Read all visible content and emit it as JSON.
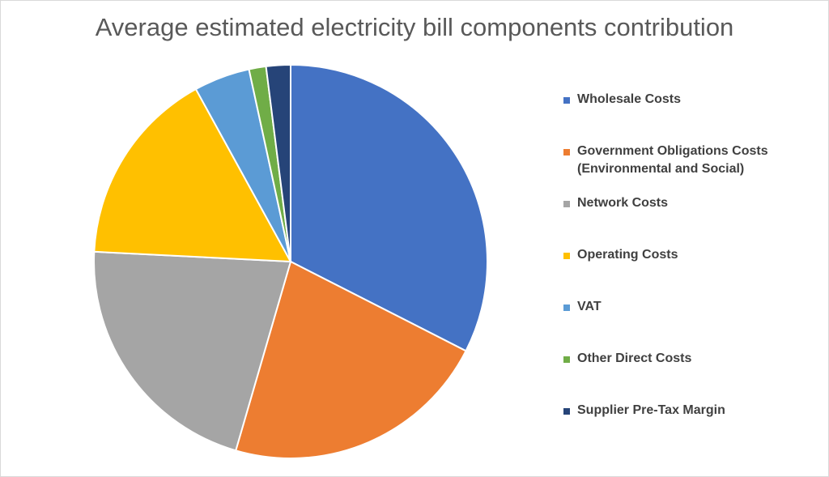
{
  "chart_data": {
    "type": "pie",
    "title": "Average estimated electricity bill components contribution",
    "legend_position": "right",
    "start_angle": "12 o'clock, clockwise",
    "categories": [
      "Wholesale Costs",
      "Government Obligations Costs (Environmental and Social)",
      "Network Costs",
      "Operating Costs",
      "VAT",
      "Other Direct Costs",
      "Supplier Pre-Tax Margin"
    ],
    "values": [
      32.5,
      22.0,
      21.3,
      16.2,
      4.6,
      1.4,
      2.0
    ],
    "unit": "% (estimated)",
    "colors": [
      "#4472C4",
      "#ED7D31",
      "#A5A5A5",
      "#FFC000",
      "#5B9BD5",
      "#70AD47",
      "#264478"
    ]
  }
}
